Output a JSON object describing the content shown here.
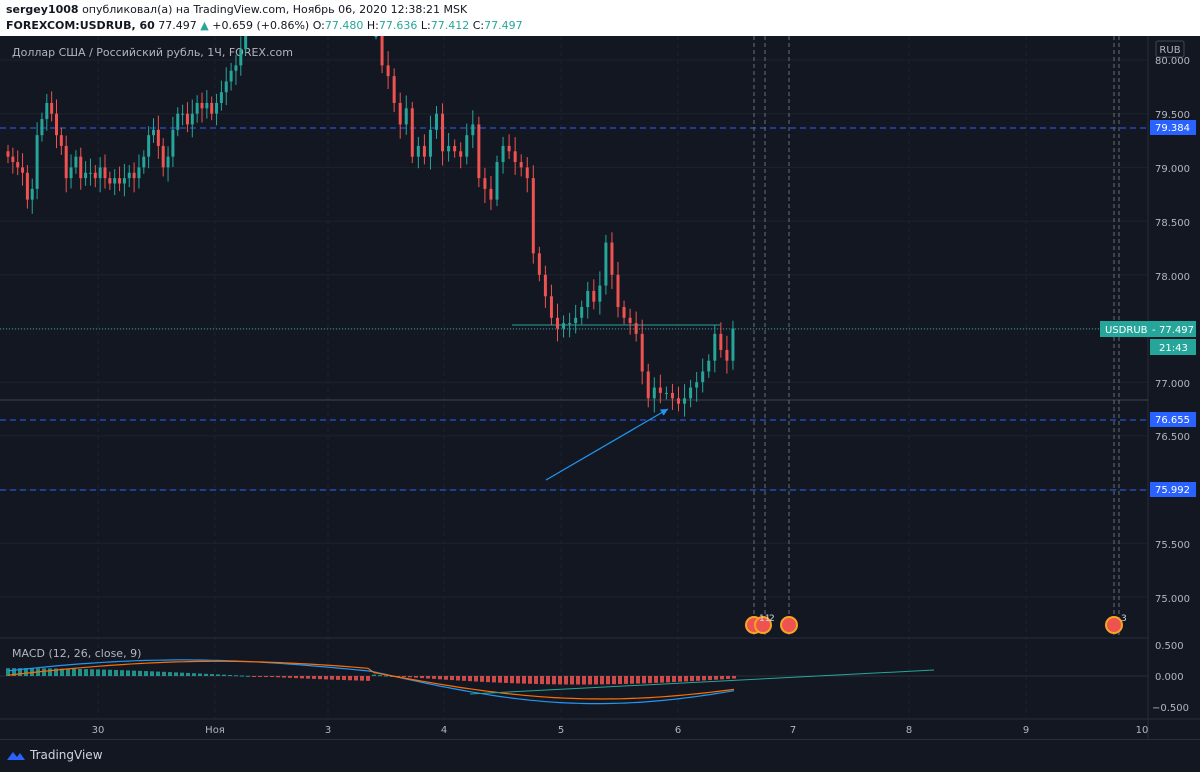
{
  "header": {
    "user": "sergey1008",
    "published": "опубликовал(а) на TradingView.com, Ноябрь 06, 2020 12:38:21 MSK",
    "symbol": "FOREXCOM:USDRUB, 60",
    "last": "77.497",
    "change": "+0.659 (+0.86%)",
    "o_label": "O:",
    "o_value": "77.480",
    "h_label": "H:",
    "h_value": "77.636",
    "l_label": "L:",
    "l_value": "77.412",
    "c_label": "C:",
    "c_value": "77.497"
  },
  "pane_title": "Доллар США / Российский рубль, 1Ч, FOREX.com",
  "currency_badge": "RUB",
  "price_badge_label": "USDRUB",
  "price_badge_value": "77.497",
  "countdown": "21:43",
  "level_labels": [
    "79.384",
    "76.655",
    "75.992"
  ],
  "price_ticks": [
    "80.000",
    "79.500",
    "79.000",
    "78.500",
    "78.000",
    "77.000",
    "76.500",
    "75.500",
    "75.000"
  ],
  "event_labels": [
    "11",
    "2",
    "3"
  ],
  "macd": {
    "title": "MACD (12, 26, close, 9)",
    "ticks": [
      "0.500",
      "0.000",
      "−0.500"
    ]
  },
  "x_labels": [
    "30",
    "Ноя",
    "3",
    "4",
    "5",
    "6",
    "7",
    "8",
    "9",
    "10"
  ],
  "footer": {
    "brand": "TradingView"
  },
  "colors": {
    "up": "#26a69a",
    "down": "#ef5350",
    "level": "#2962ff",
    "grid": "#2a2e39",
    "macd": "#2196f3",
    "signal": "#ff6d00"
  },
  "chart_data": {
    "type": "candlestick",
    "symbol": "FOREXCOM:USDRUB",
    "timeframe": "1H",
    "ylim": [
      74.6,
      80.2
    ],
    "price_levels": [
      79.384,
      76.655,
      75.992
    ],
    "last_price": 77.497,
    "candle_closes": [
      79.1,
      79.05,
      79.0,
      78.95,
      78.7,
      78.8,
      79.3,
      79.45,
      79.6,
      79.5,
      79.3,
      79.2,
      78.9,
      79.0,
      79.1,
      78.9,
      78.95,
      78.95,
      78.9,
      79.0,
      78.9,
      78.85,
      78.9,
      78.85,
      78.9,
      78.95,
      78.9,
      79.0,
      79.1,
      79.3,
      79.35,
      79.2,
      79.0,
      79.1,
      79.35,
      79.5,
      79.5,
      79.4,
      79.5,
      79.6,
      79.55,
      79.6,
      79.5,
      79.6,
      79.7,
      79.8,
      79.9,
      79.95,
      80.1,
      80.3,
      80.3,
      79.95,
      79.85,
      79.6,
      79.4,
      79.55,
      79.1,
      79.2,
      79.1,
      79.35,
      79.5,
      79.15,
      79.2,
      79.15,
      79.1,
      79.3,
      79.4,
      78.9,
      78.8,
      78.7,
      79.05,
      79.2,
      79.15,
      79.05,
      79.0,
      78.9,
      78.2,
      78.0,
      77.8,
      77.6,
      77.5,
      77.55,
      77.55,
      77.6,
      77.7,
      77.85,
      77.75,
      77.9,
      78.3,
      78.0,
      77.7,
      77.6,
      77.55,
      77.45,
      77.1,
      76.85,
      76.95,
      76.9,
      76.9,
      76.85,
      76.8,
      76.85,
      76.95,
      77.0,
      77.1,
      77.2,
      77.45,
      77.3,
      77.2,
      77.5
    ],
    "macd_range": [
      -0.7,
      0.6
    ]
  }
}
